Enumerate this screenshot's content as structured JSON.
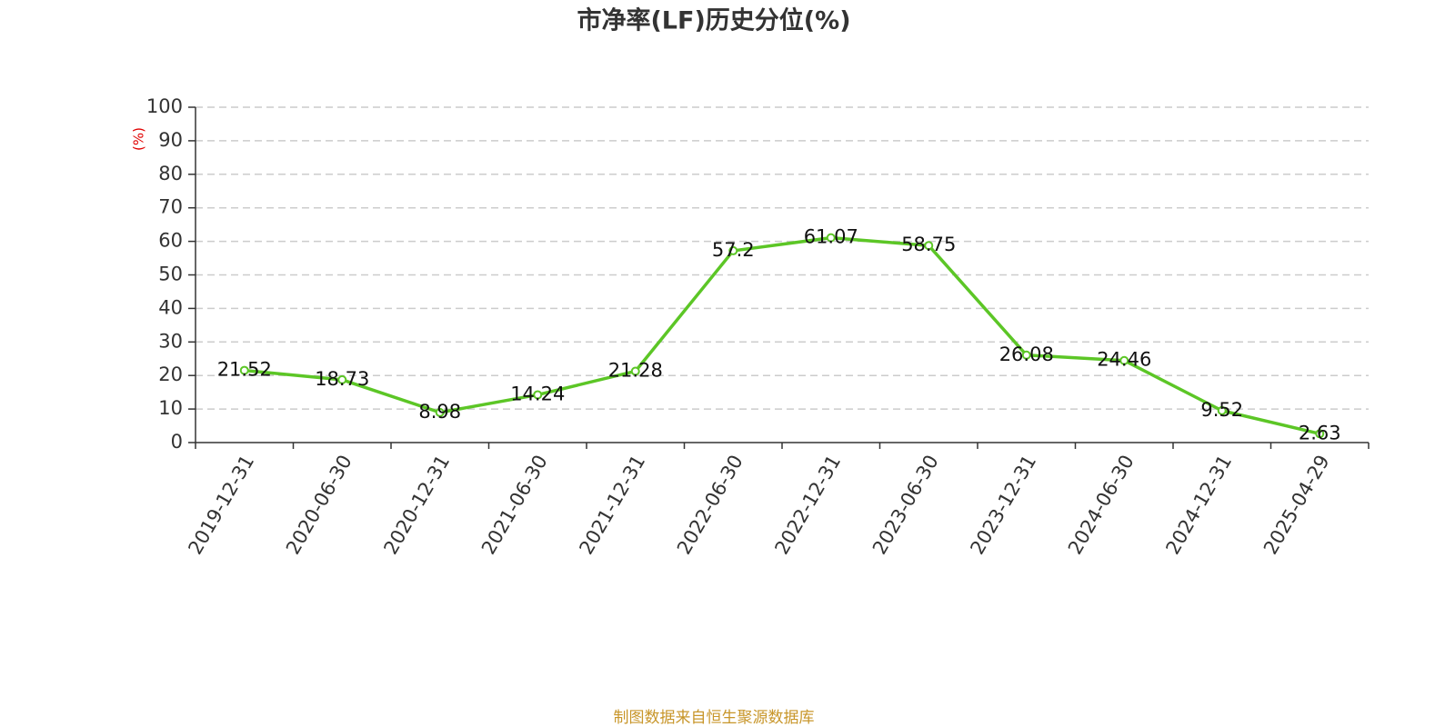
{
  "chart_data": {
    "type": "line",
    "title": "市净率(LF)历史分位(%)",
    "y_label": "(%)",
    "categories": [
      "2019-12-31",
      "2020-06-30",
      "2020-12-31",
      "2021-06-30",
      "2021-12-31",
      "2022-06-30",
      "2022-12-31",
      "2023-06-30",
      "2023-12-31",
      "2024-06-30",
      "2024-12-31",
      "2025-04-29"
    ],
    "values": [
      21.52,
      18.73,
      8.98,
      14.24,
      21.28,
      57.2,
      61.07,
      58.75,
      26.08,
      24.46,
      9.52,
      2.63
    ],
    "color": "#5cc626",
    "ylim": [
      0,
      100
    ],
    "yticks": [
      0,
      10,
      20,
      30,
      40,
      50,
      60,
      70,
      80,
      90,
      100
    ],
    "grid": true,
    "source": "制图数据来自恒生聚源数据库"
  }
}
